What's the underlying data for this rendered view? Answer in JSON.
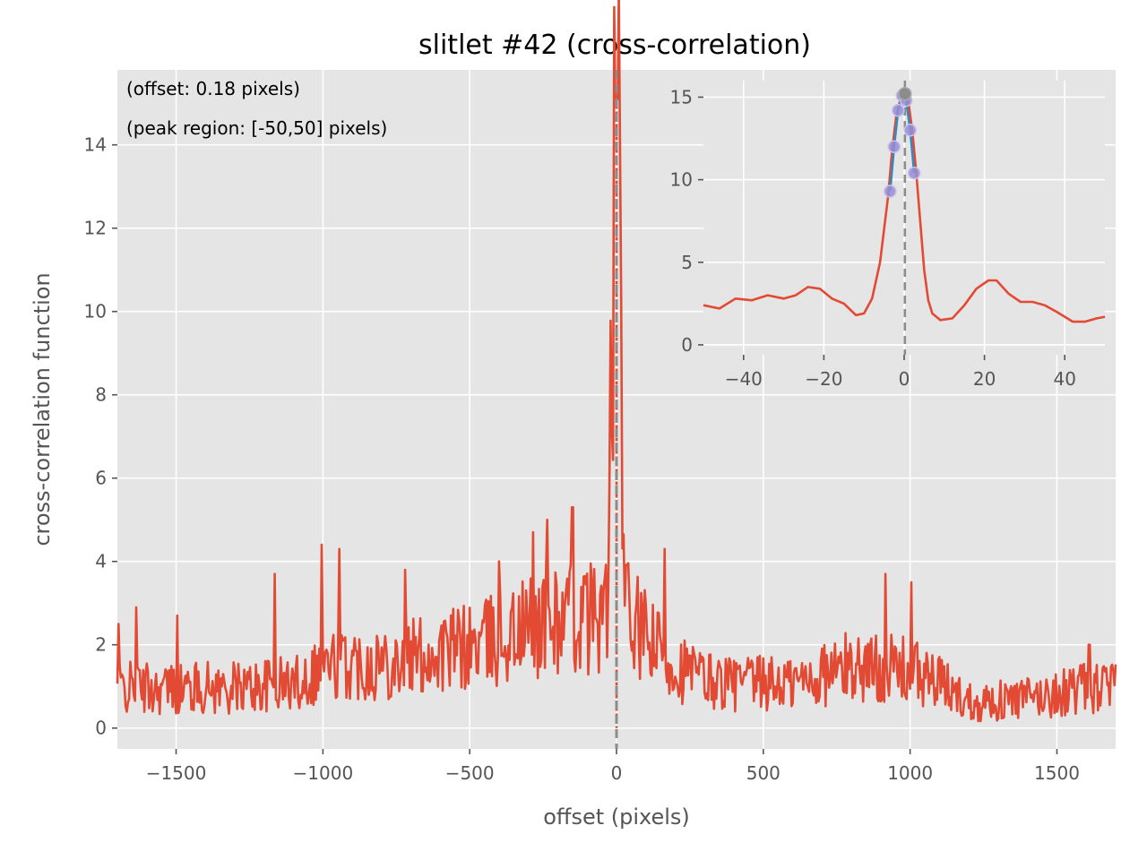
{
  "chart_data": {
    "type": "line",
    "title": "slitlet #42 (cross-correlation)",
    "xlabel": "offset (pixels)",
    "ylabel": "cross-correlation function",
    "xlim": [
      -1700,
      1700
    ],
    "ylim": [
      -0.5,
      15.8
    ],
    "xticks": [
      -1500,
      -1000,
      -500,
      0,
      500,
      1000,
      1500
    ],
    "yticks": [
      0,
      2,
      4,
      6,
      8,
      10,
      12,
      14
    ],
    "grid": true,
    "background": "#e5e5e5",
    "series_color": "#e24a33",
    "vline_color": "#8c8c8c",
    "vline_x": 0,
    "annotations": [
      "(offset:  0.18 pixels)",
      "(peak region: [-50,50] pixels)"
    ],
    "envelope": {
      "x": [
        -1700,
        -1500,
        -1300,
        -1100,
        -1000,
        -800,
        -600,
        -400,
        -250,
        -100,
        -30,
        0,
        30,
        100,
        200,
        300,
        400,
        600,
        800,
        1000,
        1100,
        1200,
        1300,
        1450,
        1600,
        1700
      ],
      "y": [
        0.9,
        0.9,
        0.9,
        1.0,
        1.4,
        1.5,
        1.7,
        2.0,
        2.4,
        2.5,
        2.7,
        15.1,
        2.6,
        2.0,
        1.4,
        1.1,
        1.0,
        1.0,
        1.4,
        1.3,
        1.0,
        0.6,
        0.6,
        0.7,
        0.9,
        0.9
      ]
    },
    "spikes": [
      {
        "x": -1695,
        "y": 2.5
      },
      {
        "x": -1635,
        "y": 2.9
      },
      {
        "x": -1497,
        "y": 2.7
      },
      {
        "x": -1165,
        "y": 3.7
      },
      {
        "x": -1005,
        "y": 4.4
      },
      {
        "x": -945,
        "y": 4.3
      },
      {
        "x": -720,
        "y": 3.8
      },
      {
        "x": -400,
        "y": 4.0
      },
      {
        "x": -285,
        "y": 4.7
      },
      {
        "x": -235,
        "y": 5.0
      },
      {
        "x": -150,
        "y": 5.3
      },
      {
        "x": 165,
        "y": 4.3
      },
      {
        "x": 915,
        "y": 3.7
      },
      {
        "x": 1005,
        "y": 3.5
      },
      {
        "x": 1610,
        "y": 2.0
      }
    ],
    "inset": {
      "xlim": [
        -50,
        50
      ],
      "ylim": [
        -0.6,
        16
      ],
      "xticks": [
        -40,
        -20,
        0,
        20,
        40
      ],
      "yticks": [
        0,
        5,
        10,
        15
      ],
      "curve": {
        "x": [
          -50,
          -46,
          -42,
          -38,
          -34,
          -30,
          -27,
          -24,
          -21,
          -18,
          -15,
          -12,
          -10,
          -8,
          -6,
          -4,
          -3,
          -2,
          -1,
          0,
          1,
          2,
          3,
          4,
          5,
          6,
          7,
          9,
          12,
          15,
          18,
          21,
          23,
          26,
          29,
          32,
          35,
          38,
          42,
          45,
          48,
          50
        ],
        "y": [
          2.4,
          2.2,
          2.8,
          2.7,
          3.0,
          2.8,
          3.0,
          3.5,
          3.4,
          2.8,
          2.5,
          1.8,
          1.9,
          2.8,
          5.0,
          9.0,
          11.8,
          13.8,
          14.8,
          15.2,
          14.8,
          13.0,
          10.5,
          7.5,
          4.5,
          2.7,
          1.9,
          1.5,
          1.6,
          2.4,
          3.4,
          3.9,
          3.9,
          3.1,
          2.6,
          2.6,
          2.4,
          2.0,
          1.4,
          1.4,
          1.6,
          1.7
        ]
      },
      "fit": {
        "x": [
          -3.5,
          -2.5,
          -1.5,
          -0.5,
          0.5,
          1.5,
          2.5
        ],
        "y": [
          9.3,
          12.0,
          14.2,
          15.1,
          14.8,
          13.0,
          10.4
        ]
      },
      "points": {
        "x": [
          -3.5,
          -2.5,
          -1.5,
          -0.5,
          0.5,
          1.5,
          2.5
        ],
        "y": [
          9.3,
          12.0,
          14.2,
          15.1,
          14.8,
          13.0,
          10.4
        ]
      },
      "peak": {
        "x": 0.18,
        "y": 15.2
      },
      "fit_color": "#348abd",
      "point_color": "#988ed5"
    }
  }
}
